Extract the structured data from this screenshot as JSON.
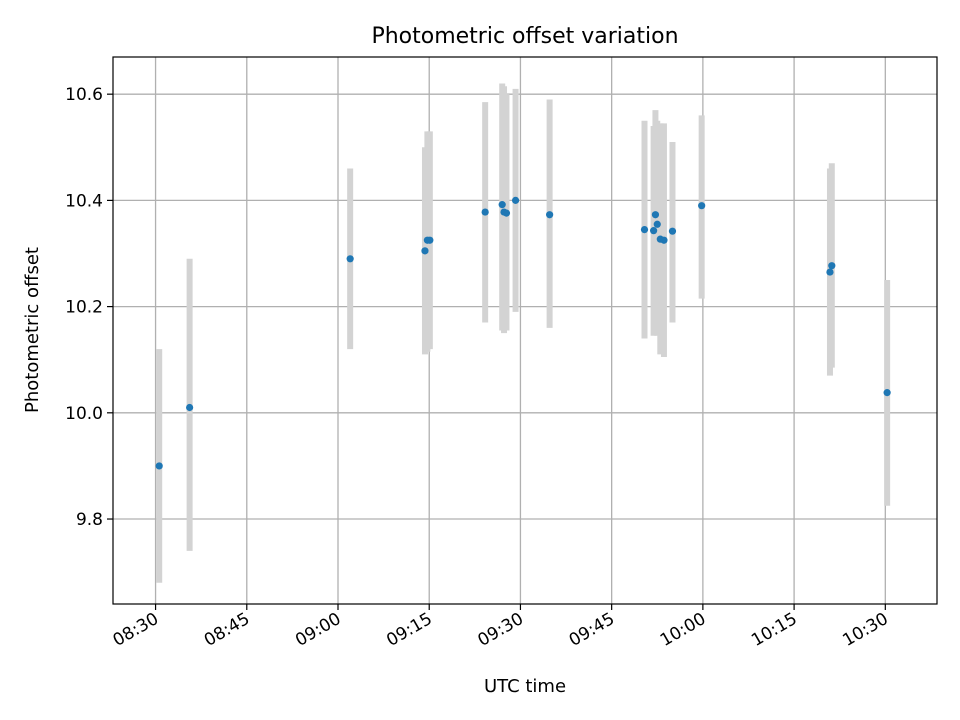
{
  "chart_data": {
    "type": "scatter",
    "title": "Photometric offset variation",
    "xlabel": "UTC time",
    "ylabel": "Photometric offset",
    "x_is_time": true,
    "xlim": [
      "08:23:00",
      "10:38:30"
    ],
    "ylim": [
      9.64,
      10.67
    ],
    "xticks": [
      "08:30",
      "08:45",
      "09:00",
      "09:15",
      "09:30",
      "09:45",
      "10:00",
      "10:15",
      "10:30"
    ],
    "yticks": [
      "9.8",
      "10.0",
      "10.2",
      "10.4",
      "10.6"
    ],
    "grid": true,
    "colors": {
      "point": "#1f77b4",
      "errorbar": "#d3d3d3",
      "grid": "#b0b0b0"
    },
    "points": [
      {
        "time": "08:30:36",
        "y": 9.9,
        "err_low": 9.68,
        "err_high": 10.12
      },
      {
        "time": "08:35:36",
        "y": 10.01,
        "err_low": 9.74,
        "err_high": 10.29
      },
      {
        "time": "09:02:00",
        "y": 10.29,
        "err_low": 10.12,
        "err_high": 10.46
      },
      {
        "time": "09:14:18",
        "y": 10.305,
        "err_low": 10.11,
        "err_high": 10.5
      },
      {
        "time": "09:14:42",
        "y": 10.325,
        "err_low": 10.115,
        "err_high": 10.53
      },
      {
        "time": "09:15:06",
        "y": 10.325,
        "err_low": 10.12,
        "err_high": 10.53
      },
      {
        "time": "09:24:12",
        "y": 10.378,
        "err_low": 10.17,
        "err_high": 10.585
      },
      {
        "time": "09:27:00",
        "y": 10.392,
        "err_low": 10.155,
        "err_high": 10.62
      },
      {
        "time": "09:27:18",
        "y": 10.378,
        "err_low": 10.15,
        "err_high": 10.615
      },
      {
        "time": "09:27:42",
        "y": 10.376,
        "err_low": 10.155,
        "err_high": 10.6
      },
      {
        "time": "09:29:12",
        "y": 10.4,
        "err_low": 10.19,
        "err_high": 10.61
      },
      {
        "time": "09:34:48",
        "y": 10.373,
        "err_low": 10.16,
        "err_high": 10.59
      },
      {
        "time": "09:50:24",
        "y": 10.345,
        "err_low": 10.14,
        "err_high": 10.55
      },
      {
        "time": "09:51:54",
        "y": 10.343,
        "err_low": 10.145,
        "err_high": 10.54
      },
      {
        "time": "09:52:12",
        "y": 10.373,
        "err_low": 10.175,
        "err_high": 10.57
      },
      {
        "time": "09:52:30",
        "y": 10.355,
        "err_low": 10.145,
        "err_high": 10.55
      },
      {
        "time": "09:53:00",
        "y": 10.327,
        "err_low": 10.11,
        "err_high": 10.545
      },
      {
        "time": "09:53:36",
        "y": 10.325,
        "err_low": 10.105,
        "err_high": 10.545
      },
      {
        "time": "09:55:00",
        "y": 10.342,
        "err_low": 10.17,
        "err_high": 10.51
      },
      {
        "time": "09:59:48",
        "y": 10.39,
        "err_low": 10.215,
        "err_high": 10.56
      },
      {
        "time": "10:20:54",
        "y": 10.265,
        "err_low": 10.07,
        "err_high": 10.46
      },
      {
        "time": "10:21:12",
        "y": 10.277,
        "err_low": 10.085,
        "err_high": 10.47
      },
      {
        "time": "10:30:18",
        "y": 10.038,
        "err_low": 9.825,
        "err_high": 10.25
      }
    ]
  }
}
